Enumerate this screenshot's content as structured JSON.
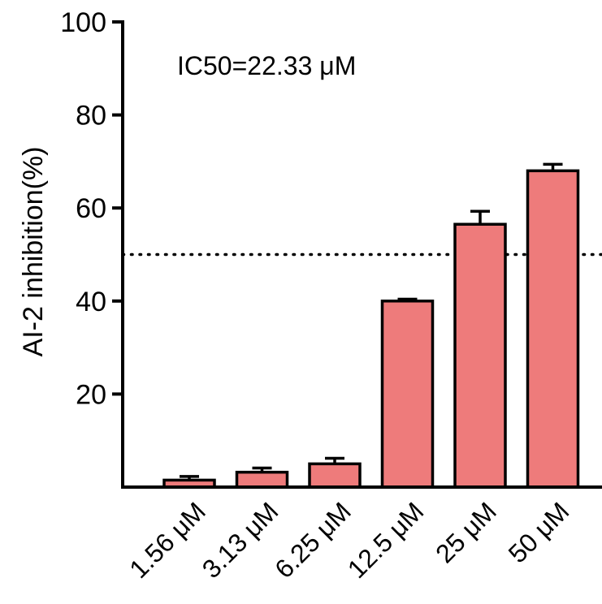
{
  "chart_data": {
    "type": "bar",
    "categories": [
      "1.56 μM",
      "3.13 μM",
      "6.25 μM",
      "12.5 μM",
      "25 μM",
      "50 μM"
    ],
    "series": [
      {
        "values": [
          1.5,
          3.2,
          5.0,
          40.0,
          56.5,
          68.0
        ],
        "error": [
          0.8,
          0.9,
          1.2,
          0.4,
          2.8,
          1.4
        ],
        "color": "#ee7b7b"
      }
    ],
    "ylabel": "AI-2 inhibition(%)",
    "xlabel": "",
    "ylim": [
      0,
      100
    ],
    "yticks": [
      20,
      40,
      60,
      80,
      100
    ],
    "reference_line": {
      "y": 50,
      "style": "dotted"
    },
    "annotation": "IC50=22.33 μM",
    "grid": false,
    "legend": "none",
    "bar_stroke_color": "#000000"
  }
}
